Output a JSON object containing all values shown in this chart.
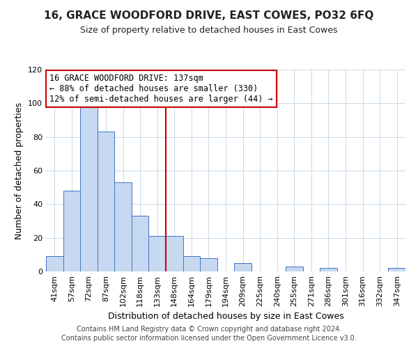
{
  "title": "16, GRACE WOODFORD DRIVE, EAST COWES, PO32 6FQ",
  "subtitle": "Size of property relative to detached houses in East Cowes",
  "xlabel": "Distribution of detached houses by size in East Cowes",
  "ylabel": "Number of detached properties",
  "bar_labels": [
    "41sqm",
    "57sqm",
    "72sqm",
    "87sqm",
    "102sqm",
    "118sqm",
    "133sqm",
    "148sqm",
    "164sqm",
    "179sqm",
    "194sqm",
    "209sqm",
    "225sqm",
    "240sqm",
    "255sqm",
    "271sqm",
    "286sqm",
    "301sqm",
    "316sqm",
    "332sqm",
    "347sqm"
  ],
  "bar_values": [
    9,
    48,
    99,
    83,
    53,
    33,
    21,
    21,
    9,
    8,
    0,
    5,
    0,
    0,
    3,
    0,
    2,
    0,
    0,
    0,
    2
  ],
  "bar_color": "#c6d9f1",
  "bar_edge_color": "#4472c4",
  "annotation_line0": "16 GRACE WOODFORD DRIVE: 137sqm",
  "annotation_line1": "← 88% of detached houses are smaller (330)",
  "annotation_line2": "12% of semi-detached houses are larger (44) →",
  "annotation_box_color": "#ffffff",
  "annotation_box_edge": "#cc0000",
  "vline_color": "#cc0000",
  "ylim": [
    0,
    120
  ],
  "yticks": [
    0,
    20,
    40,
    60,
    80,
    100,
    120
  ],
  "footer1": "Contains HM Land Registry data © Crown copyright and database right 2024.",
  "footer2": "Contains public sector information licensed under the Open Government Licence v3.0.",
  "title_fontsize": 11,
  "subtitle_fontsize": 9,
  "footer_fontsize": 7,
  "axis_label_fontsize": 9,
  "tick_fontsize": 8,
  "annotation_fontsize": 8.5
}
